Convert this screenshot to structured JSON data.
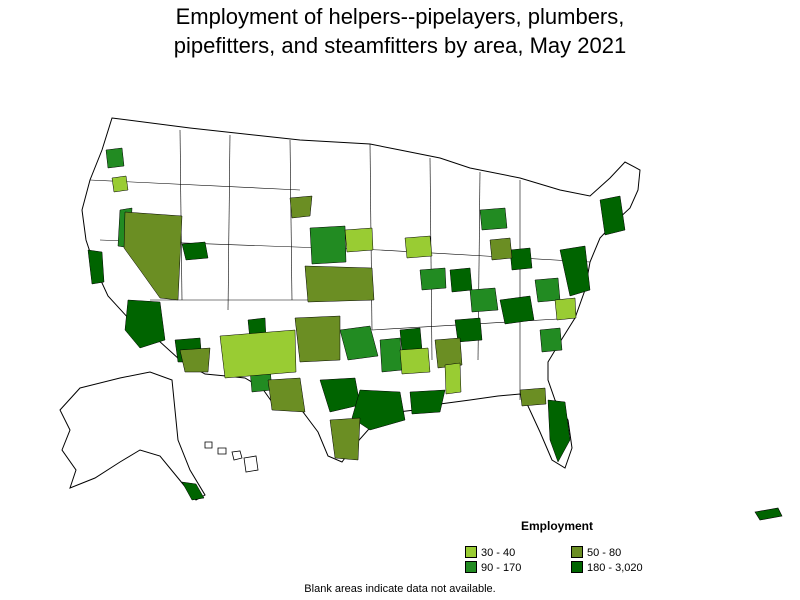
{
  "title_lines": [
    "Employment of helpers--pipelayers, plumbers,",
    "pipefitters, and steamfitters by area, May 2021"
  ],
  "legend": {
    "title": "Employment",
    "items": [
      {
        "label": "30 - 40",
        "color": "#99cc33"
      },
      {
        "label": "50 - 80",
        "color": "#6b8e23"
      },
      {
        "label": "90 - 170",
        "color": "#228b22"
      },
      {
        "label": "180 - 3,020",
        "color": "#006400"
      }
    ]
  },
  "note": "Blank areas indicate data not available.",
  "map_colors": {
    "land": "#ffffff",
    "border": "#000000",
    "water": "#ffffff"
  }
}
